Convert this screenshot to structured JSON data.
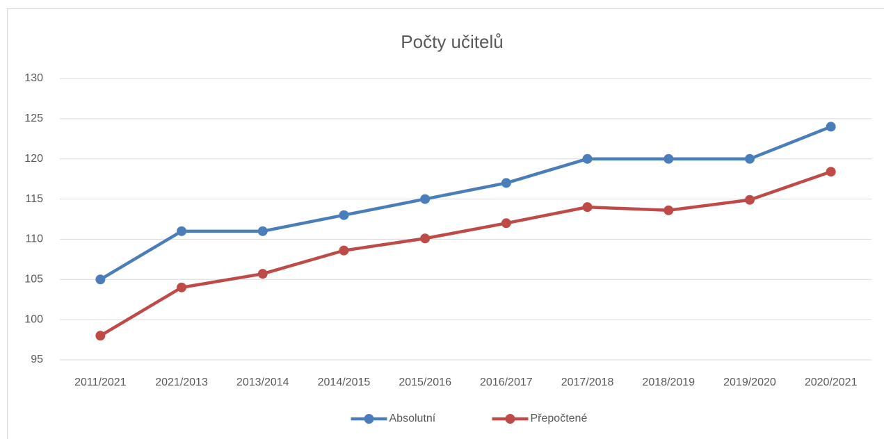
{
  "chart_data": {
    "type": "line",
    "title": "Počty učitelů",
    "categories": [
      "2011/2021",
      "2021/2013",
      "2013/2014",
      "2014/2015",
      "2015/2016",
      "2016/2017",
      "2017/2018",
      "2018/2019",
      "2019/2020",
      "2020/2021"
    ],
    "series": [
      {
        "name": "Absolutní",
        "color": "#4a7ebb",
        "values": [
          105,
          111,
          111,
          113,
          115,
          117,
          120,
          120,
          120,
          124
        ]
      },
      {
        "name": "Přepočtené",
        "color": "#be4b48",
        "values": [
          98,
          104,
          105.7,
          108.6,
          110.1,
          112,
          114,
          113.6,
          114.9,
          118.4
        ]
      }
    ],
    "ylim": [
      95,
      130
    ],
    "yticks": [
      95,
      100,
      105,
      110,
      115,
      120,
      125,
      130
    ],
    "grid": true,
    "legend": "bottom"
  }
}
